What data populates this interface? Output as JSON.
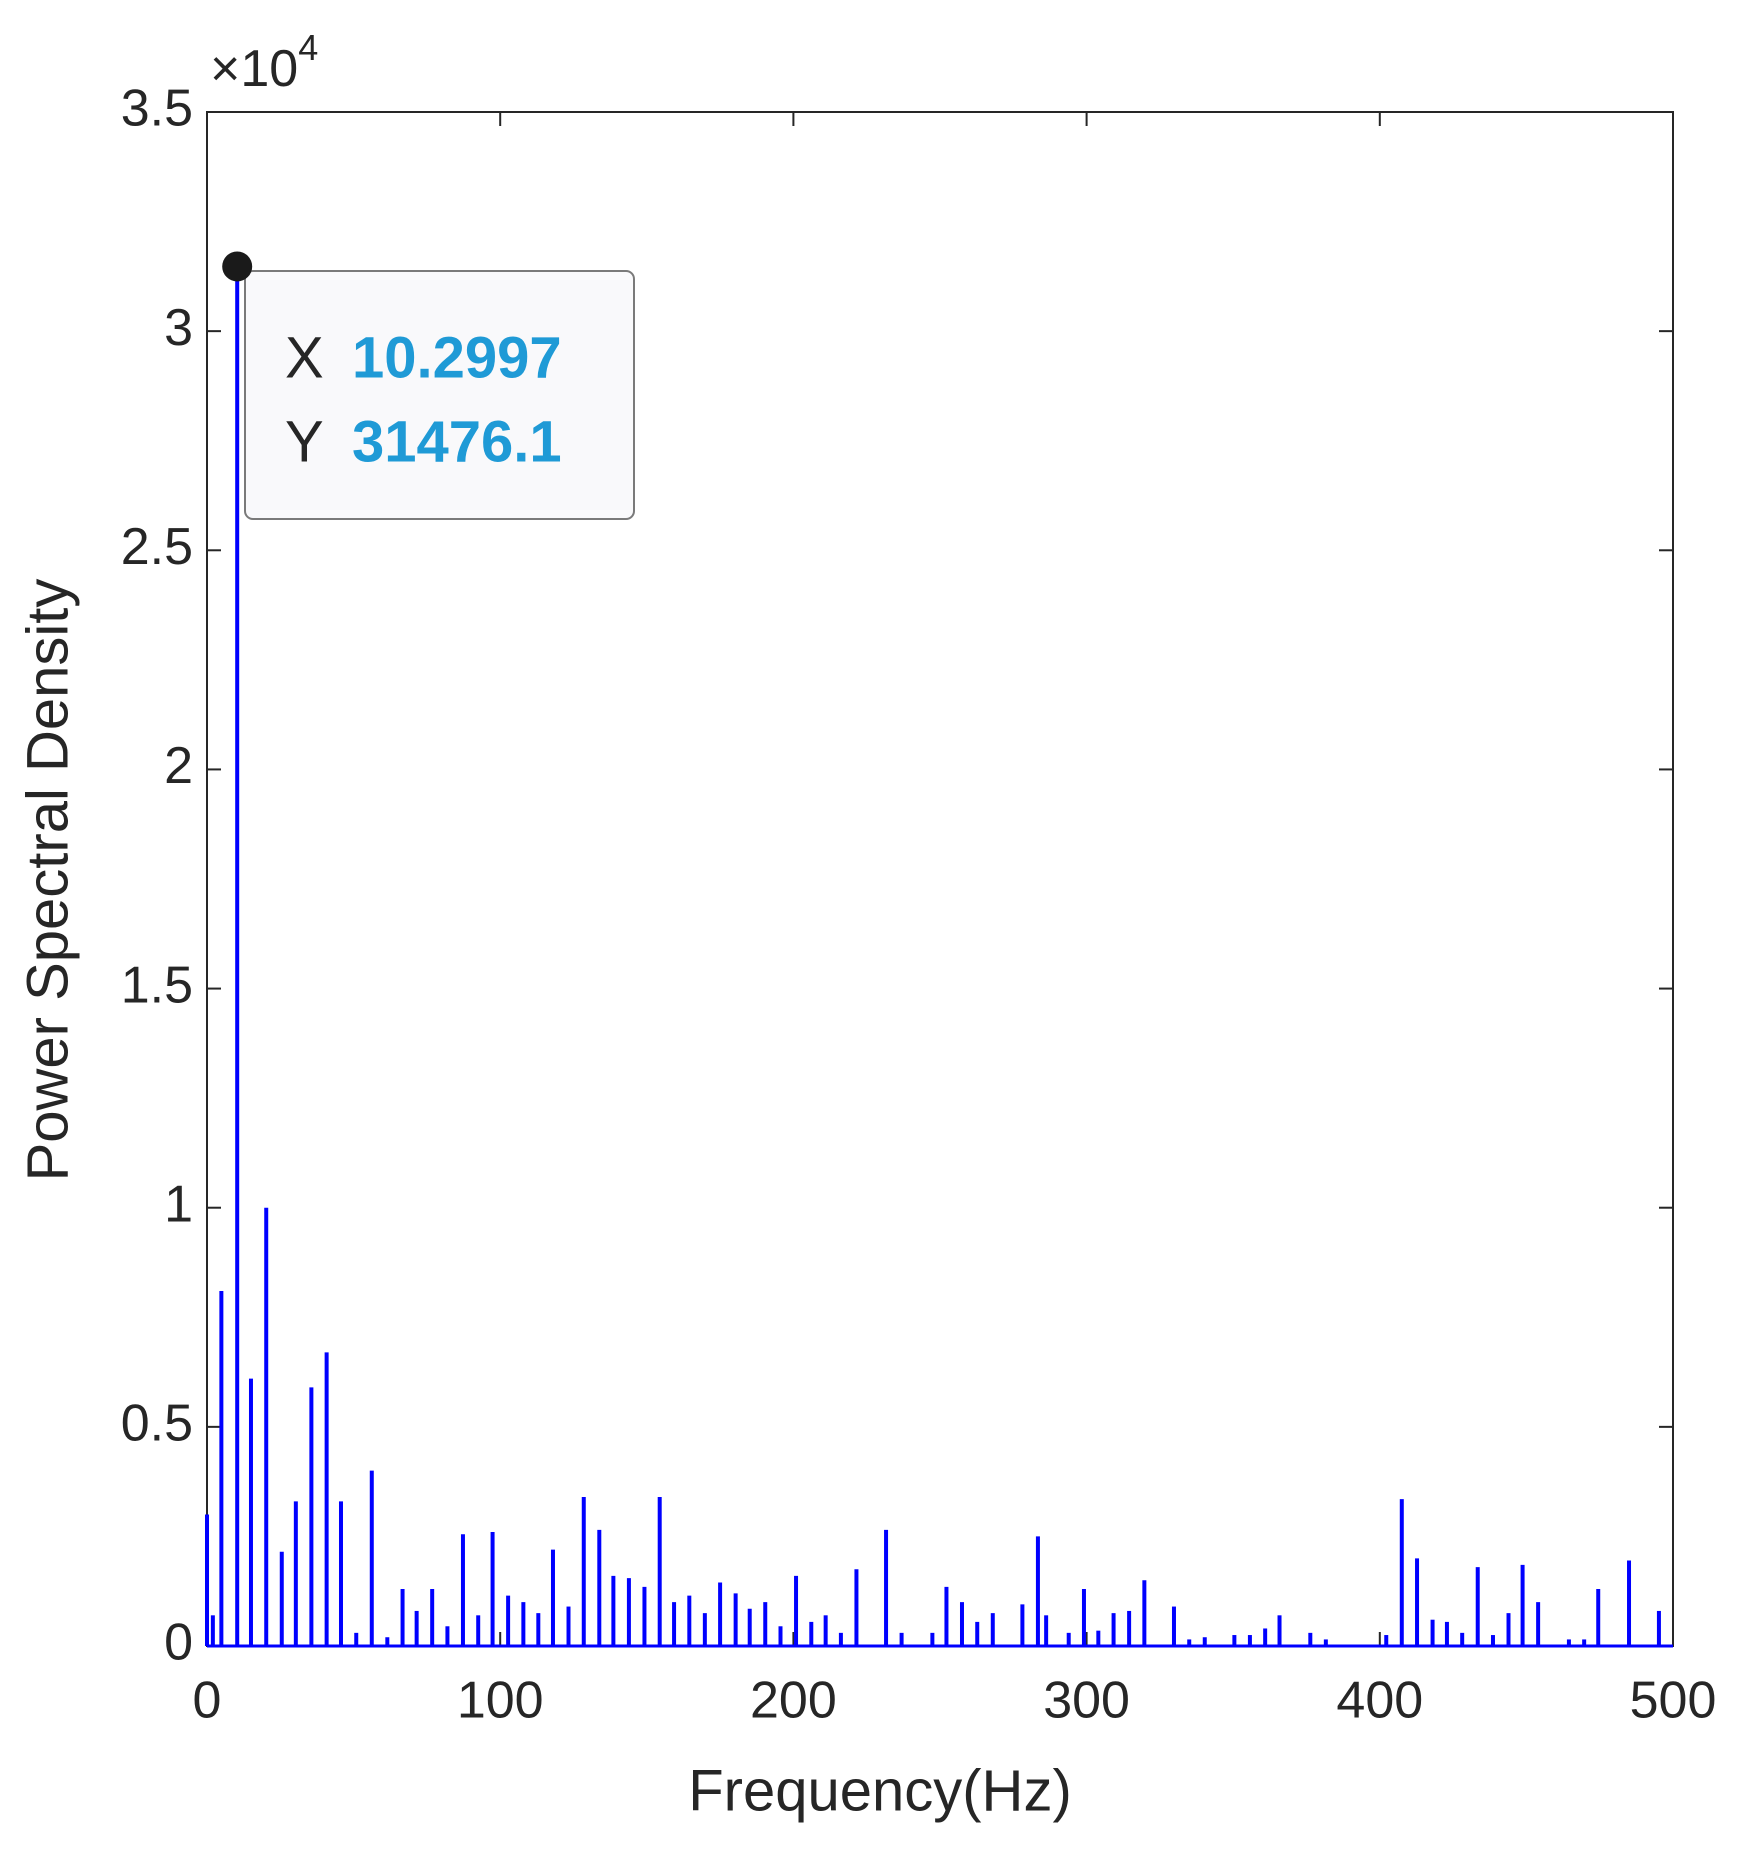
{
  "chart_data": {
    "type": "stem",
    "xlabel": "Frequency(Hz)",
    "ylabel": "Power Spectral Density",
    "y_multiplier": {
      "base": "×10",
      "exponent": "4"
    },
    "xlim": [
      0,
      500
    ],
    "ylim": [
      0,
      35000
    ],
    "xticks": [
      0,
      100,
      200,
      300,
      400,
      500
    ],
    "yticks": [
      0,
      {
        "value": 5000,
        "label": "0.5"
      },
      {
        "value": 10000,
        "label": "1"
      },
      {
        "value": 15000,
        "label": "1.5"
      },
      {
        "value": 20000,
        "label": "2"
      },
      {
        "value": 25000,
        "label": "2.5"
      },
      {
        "value": 30000,
        "label": "3"
      },
      {
        "value": 35000,
        "label": "3.5"
      }
    ],
    "series": [
      {
        "color": "#0000ff",
        "x": [
          0,
          2,
          4.9,
          10.2997,
          15,
          20.2,
          25.5,
          30.3,
          35.6,
          40.8,
          45.7,
          50.9,
          56.2,
          61.5,
          66.7,
          71.5,
          76.8,
          82,
          87.3,
          92.5,
          97.4,
          102.7,
          107.9,
          113,
          118,
          123.3,
          128.5,
          133.8,
          138.6,
          143.9,
          149.2,
          154.4,
          159.3,
          164.5,
          169.8,
          175,
          180.3,
          185.1,
          190.4,
          195.6,
          200.9,
          206.1,
          211,
          216.2,
          221.5,
          231.6,
          236.9,
          247.4,
          252.2,
          257.5,
          262.7,
          268,
          278.1,
          283.4,
          286.2,
          293.9,
          299.1,
          304,
          309.2,
          314.5,
          319.7,
          329.8,
          335,
          340.3,
          350.4,
          355.7,
          360.9,
          365.8,
          376.3,
          381.6,
          402.2,
          407.5,
          412.7,
          418,
          422.9,
          428.1,
          433.4,
          438.6,
          443.9,
          448.7,
          454,
          464.5,
          469.7,
          474.5,
          485,
          495.2
        ],
        "values": [
          3000,
          700,
          8100,
          31476.1,
          6100,
          10000,
          2150,
          3300,
          5900,
          6700,
          3300,
          300,
          4000,
          200,
          1300,
          800,
          1300,
          450,
          2550,
          700,
          2600,
          1150,
          1000,
          750,
          2200,
          900,
          3400,
          2650,
          1600,
          1550,
          1350,
          3400,
          1000,
          1150,
          750,
          1450,
          1200,
          850,
          1000,
          450,
          1600,
          550,
          700,
          300,
          1750,
          2650,
          300,
          300,
          1350,
          1000,
          550,
          750,
          950,
          2500,
          700,
          300,
          1300,
          350,
          750,
          800,
          1500,
          900,
          150,
          200,
          250,
          250,
          400,
          700,
          300,
          150,
          250,
          3350,
          2000,
          600,
          550,
          300,
          1800,
          250,
          750,
          1850,
          1000,
          150,
          150,
          1300,
          1950,
          800
        ]
      }
    ],
    "datatip": {
      "x_label": "X",
      "y_label": "Y",
      "x": 10.2997,
      "y": 31476.1,
      "marker_color": "#1a1a1a",
      "value_color": "#1f9ad6"
    }
  }
}
